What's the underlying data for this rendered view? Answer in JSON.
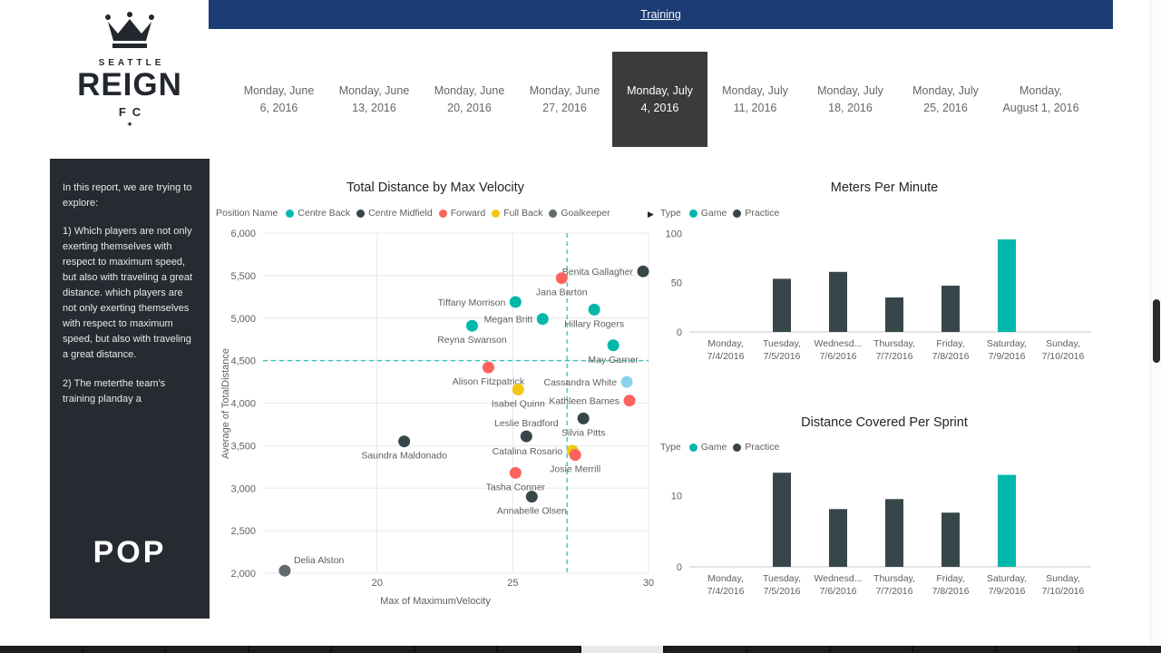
{
  "header": {
    "link": "Training"
  },
  "sidebar": {
    "logo": {
      "top": "SEATTLE",
      "middle": "REIGN",
      "bottom": "FC",
      "diamond": "✦"
    },
    "intro": "In this report, we are trying to explore:",
    "point1": "1) Which players are not only exerting themselves with respect to maximum speed, but also with traveling a great distance. which players are not only exerting themselves with respect to maximum speed, but also with traveling a great distance.",
    "point2": "2) The meterthe team's training planday a",
    "brand": "POP"
  },
  "date_tabs": {
    "selected_index": 4,
    "tabs": [
      {
        "line1": "Monday, June",
        "line2": "6, 2016"
      },
      {
        "line1": "Monday, June",
        "line2": "13, 2016"
      },
      {
        "line1": "Monday, June",
        "line2": "20, 2016"
      },
      {
        "line1": "Monday, June",
        "line2": "27, 2016"
      },
      {
        "line1": "Monday, July",
        "line2": "4, 2016"
      },
      {
        "line1": "Monday, July",
        "line2": "11, 2016"
      },
      {
        "line1": "Monday, July",
        "line2": "18, 2016"
      },
      {
        "line1": "Monday, July",
        "line2": "25, 2016"
      },
      {
        "line1": "Monday,",
        "line2": "August 1, 2016"
      }
    ]
  },
  "colors": {
    "accent_teal": "#01b8aa",
    "dark": "#374649",
    "red": "#fd625e",
    "yellow": "#f2c80f",
    "gray": "#5f6b6d",
    "light_blue": "#8ad4eb",
    "header_blue": "#1b3c74",
    "tab_selected_bg": "#3b3b3b",
    "panel_bg": "#262b31"
  },
  "chart_data": [
    {
      "type": "scatter",
      "title": "Total Distance by Max Velocity",
      "xlabel": "Max of MaximumVelocity",
      "ylabel": "Average of TotalDistance",
      "xlim": [
        15.8,
        30
      ],
      "ylim": [
        2000,
        6000
      ],
      "xticks": [
        20,
        25,
        30
      ],
      "yticks": [
        2000,
        2500,
        3000,
        3500,
        4000,
        4500,
        5000,
        5500,
        6000
      ],
      "legend_title": "Position Name",
      "legend": [
        {
          "label": "Centre Back",
          "color": "#01b8aa"
        },
        {
          "label": "Centre Midfield",
          "color": "#374649"
        },
        {
          "label": "Forward",
          "color": "#fd625e"
        },
        {
          "label": "Full Back",
          "color": "#f2c80f"
        },
        {
          "label": "Goalkeeper",
          "color": "#5f6b6d"
        }
      ],
      "legend_overflow_icon": "▶",
      "reference_lines": {
        "x": 27.0,
        "y": 4500
      },
      "points": [
        {
          "name": "Benita Gallagher",
          "position": "Centre Midfield",
          "x": 29.8,
          "y": 5550,
          "label_pos": "left"
        },
        {
          "name": "Jana Barton",
          "position": "Forward",
          "x": 26.8,
          "y": 5470,
          "label_pos": "below"
        },
        {
          "name": "Tiffany Morrison",
          "position": "Centre Back",
          "x": 25.1,
          "y": 5190,
          "label_pos": "left"
        },
        {
          "name": "Hillary Rogers",
          "position": "Centre Back",
          "x": 28.0,
          "y": 5100,
          "label_pos": "below"
        },
        {
          "name": "Megan Britt",
          "position": "Centre Back",
          "x": 26.1,
          "y": 4990,
          "label_pos": "left"
        },
        {
          "name": "Reyna Swanson",
          "position": "Centre Back",
          "x": 23.5,
          "y": 4910,
          "label_pos": "below"
        },
        {
          "name": "May Garner",
          "position": "Centre Back",
          "x": 28.7,
          "y": 4680,
          "label_pos": "below"
        },
        {
          "name": "Alison Fitzpatrick",
          "position": "Forward",
          "x": 24.1,
          "y": 4420,
          "label_pos": "below"
        },
        {
          "name": "Cassandra White",
          "color": "#8ad4eb",
          "x": 29.2,
          "y": 4250,
          "label_pos": "left"
        },
        {
          "name": "Isabel Quinn",
          "position": "Full Back",
          "x": 25.2,
          "y": 4160,
          "label_pos": "below"
        },
        {
          "name": "Kathleen Barnes",
          "position": "Forward",
          "x": 29.3,
          "y": 4030,
          "label_pos": "left"
        },
        {
          "name": "Silvia Pitts",
          "position": "Centre Midfield",
          "x": 27.6,
          "y": 3820,
          "label_pos": "below"
        },
        {
          "name": "Leslie Bradford",
          "position": "Centre Midfield",
          "x": 25.5,
          "y": 3610,
          "label_pos": "above"
        },
        {
          "name": "Saundra Maldonado",
          "position": "Centre Midfield",
          "x": 21.0,
          "y": 3550,
          "label_pos": "below"
        },
        {
          "name": "Catalina Rosario",
          "position": "Full Back",
          "x": 27.2,
          "y": 3440,
          "label_pos": "left"
        },
        {
          "name": "Josie Merrill",
          "position": "Forward",
          "x": 27.3,
          "y": 3390,
          "label_pos": "below"
        },
        {
          "name": "Tasha Conner",
          "position": "Forward",
          "x": 25.1,
          "y": 3180,
          "label_pos": "below"
        },
        {
          "name": "Annabelle Olsen",
          "position": "Centre Midfield",
          "x": 25.7,
          "y": 2900,
          "label_pos": "below"
        },
        {
          "name": "Delia Alston",
          "position": "Goalkeeper",
          "x": 16.6,
          "y": 2030,
          "label_pos": "above-right"
        }
      ]
    },
    {
      "type": "bar",
      "title": "Meters Per Minute",
      "legend_title": "Type",
      "legend": [
        {
          "label": "Game",
          "color": "#01b8aa"
        },
        {
          "label": "Practice",
          "color": "#374649"
        }
      ],
      "categories": [
        {
          "line1": "Monday,",
          "line2": "7/4/2016"
        },
        {
          "line1": "Tuesday,",
          "line2": "7/5/2016"
        },
        {
          "line1": "Wednesd...",
          "line2": "7/6/2016"
        },
        {
          "line1": "Thursday,",
          "line2": "7/7/2016"
        },
        {
          "line1": "Friday,",
          "line2": "7/8/2016"
        },
        {
          "line1": "Saturday,",
          "line2": "7/9/2016"
        },
        {
          "line1": "Sunday,",
          "line2": "7/10/2016"
        }
      ],
      "values": [
        null,
        54,
        61,
        35,
        47,
        94,
        null
      ],
      "bar_types": [
        null,
        "Practice",
        "Practice",
        "Practice",
        "Practice",
        "Game",
        null
      ],
      "ylim": [
        0,
        105
      ],
      "yticks": [
        0,
        50,
        100
      ]
    },
    {
      "type": "bar",
      "title": "Distance Covered Per Sprint",
      "legend_title": "Type",
      "legend": [
        {
          "label": "Game",
          "color": "#01b8aa"
        },
        {
          "label": "Practice",
          "color": "#374649"
        }
      ],
      "categories": [
        {
          "line1": "Monday,",
          "line2": "7/4/2016"
        },
        {
          "line1": "Tuesday,",
          "line2": "7/5/2016"
        },
        {
          "line1": "Wednesd...",
          "line2": "7/6/2016"
        },
        {
          "line1": "Thursday,",
          "line2": "7/7/2016"
        },
        {
          "line1": "Friday,",
          "line2": "7/8/2016"
        },
        {
          "line1": "Saturday,",
          "line2": "7/9/2016"
        },
        {
          "line1": "Sunday,",
          "line2": "7/10/2016"
        }
      ],
      "values": [
        null,
        13.2,
        8.1,
        9.5,
        7.6,
        12.9,
        null
      ],
      "bar_types": [
        null,
        "Practice",
        "Practice",
        "Practice",
        "Practice",
        "Game",
        null
      ],
      "ylim": [
        0,
        14.5
      ],
      "yticks": [
        0,
        10
      ]
    }
  ]
}
